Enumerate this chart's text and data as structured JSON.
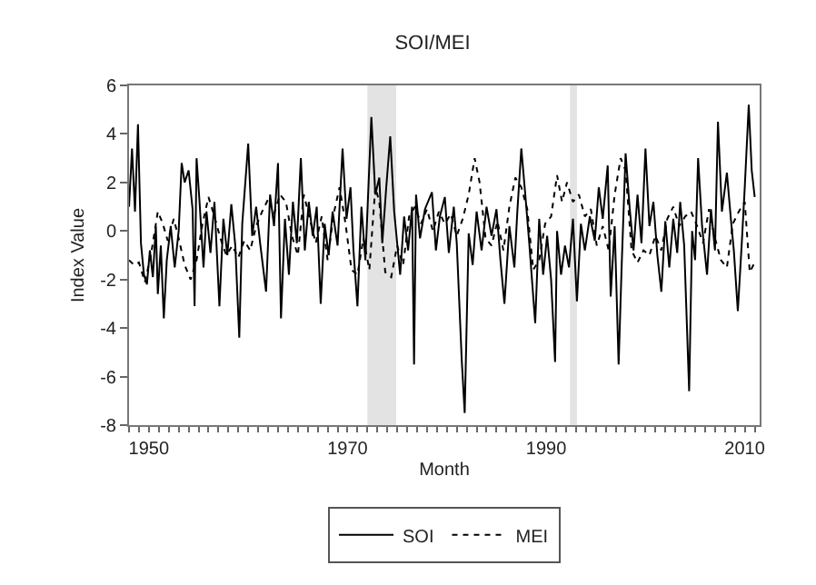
{
  "chart_data": {
    "type": "line",
    "title": "SOI/MEI",
    "xlabel": "Month",
    "ylabel": "Index Value",
    "xlim": [
      1948,
      2011.5
    ],
    "ylim": [
      -8,
      6
    ],
    "yticks": [
      -8,
      -6,
      -4,
      -2,
      0,
      2,
      4,
      6
    ],
    "xticks": [
      {
        "value": 1948,
        "label": null
      },
      {
        "value": 1949,
        "label": null
      },
      1950,
      {
        "value": 1951,
        "label": null
      },
      {
        "value": 1952,
        "label": null
      },
      {
        "value": 1953,
        "label": null
      },
      {
        "value": 1954,
        "label": null
      },
      {
        "value": 1955,
        "label": null
      },
      {
        "value": 1956,
        "label": null
      },
      {
        "value": 1957,
        "label": null
      },
      {
        "value": 1958,
        "label": null
      },
      {
        "value": 1959,
        "label": null
      },
      {
        "value": 1960,
        "label": null
      },
      {
        "value": 1961,
        "label": null
      },
      {
        "value": 1962,
        "label": null
      },
      {
        "value": 1963,
        "label": null
      },
      {
        "value": 1964,
        "label": null
      },
      {
        "value": 1965,
        "label": null
      },
      {
        "value": 1966,
        "label": null
      },
      {
        "value": 1967,
        "label": null
      },
      {
        "value": 1968,
        "label": null
      },
      {
        "value": 1969,
        "label": null
      },
      1970,
      {
        "value": 1971,
        "label": null
      },
      {
        "value": 1972,
        "label": null
      },
      {
        "value": 1973,
        "label": null
      },
      {
        "value": 1974,
        "label": null
      },
      {
        "value": 1975,
        "label": null
      },
      {
        "value": 1976,
        "label": null
      },
      {
        "value": 1977,
        "label": null
      },
      {
        "value": 1978,
        "label": null
      },
      {
        "value": 1979,
        "label": null
      },
      {
        "value": 1980,
        "label": null
      },
      {
        "value": 1981,
        "label": null
      },
      {
        "value": 1982,
        "label": null
      },
      {
        "value": 1983,
        "label": null
      },
      {
        "value": 1984,
        "label": null
      },
      {
        "value": 1985,
        "label": null
      },
      {
        "value": 1986,
        "label": null
      },
      {
        "value": 1987,
        "label": null
      },
      {
        "value": 1988,
        "label": null
      },
      {
        "value": 1989,
        "label": null
      },
      1990,
      {
        "value": 1991,
        "label": null
      },
      {
        "value": 1992,
        "label": null
      },
      {
        "value": 1993,
        "label": null
      },
      {
        "value": 1994,
        "label": null
      },
      {
        "value": 1995,
        "label": null
      },
      {
        "value": 1996,
        "label": null
      },
      {
        "value": 1997,
        "label": null
      },
      {
        "value": 1998,
        "label": null
      },
      {
        "value": 1999,
        "label": null
      },
      {
        "value": 2000,
        "label": null
      },
      {
        "value": 2001,
        "label": null
      },
      {
        "value": 2002,
        "label": null
      },
      {
        "value": 2003,
        "label": null
      },
      {
        "value": 2004,
        "label": null
      },
      {
        "value": 2005,
        "label": null
      },
      {
        "value": 2006,
        "label": null
      },
      {
        "value": 2007,
        "label": null
      },
      {
        "value": 2008,
        "label": null
      },
      {
        "value": 2009,
        "label": null
      },
      2010,
      {
        "value": 2011,
        "label": null
      }
    ],
    "grid": false,
    "legend": "bottom",
    "bands": [
      {
        "axis": "x",
        "from": 1972,
        "to": 1974.9,
        "color": "#e3e3e3"
      },
      {
        "axis": "x",
        "from": 1992.4,
        "to": 1993.1,
        "color": "#e3e3e3"
      }
    ],
    "series": [
      {
        "name": "SOI",
        "color": "#000000",
        "line_style": "solid",
        "x": [
          1948.0,
          1948.3,
          1948.6,
          1948.9,
          1949.2,
          1949.5,
          1949.8,
          1950.1,
          1950.4,
          1950.7,
          1950.9,
          1951.2,
          1951.5,
          1951.8,
          1952.2,
          1952.6,
          1953.0,
          1953.3,
          1953.6,
          1954.0,
          1954.4,
          1954.6,
          1954.8,
          1955.1,
          1955.5,
          1955.8,
          1956.2,
          1956.6,
          1957.1,
          1957.5,
          1957.9,
          1958.3,
          1958.7,
          1959.1,
          1959.4,
          1960.0,
          1960.4,
          1960.8,
          1961.2,
          1961.8,
          1962.2,
          1962.6,
          1963.0,
          1963.3,
          1963.7,
          1964.1,
          1964.5,
          1964.9,
          1965.3,
          1965.7,
          1966.1,
          1966.5,
          1966.9,
          1967.3,
          1967.7,
          1968.1,
          1968.5,
          1969.0,
          1969.5,
          1969.9,
          1970.3,
          1970.6,
          1971.0,
          1971.4,
          1971.8,
          1972.4,
          1972.8,
          1973.2,
          1973.5,
          1973.9,
          1974.3,
          1974.7,
          1975.3,
          1975.7,
          1976.1,
          1976.5,
          1976.7,
          1976.9,
          1977.3,
          1977.8,
          1978.5,
          1978.9,
          1979.3,
          1979.8,
          1980.2,
          1980.7,
          1981.0,
          1981.5,
          1981.8,
          1982.2,
          1982.6,
          1983.0,
          1983.5,
          1984.0,
          1984.5,
          1985.0,
          1985.4,
          1985.8,
          1986.3,
          1986.8,
          1987.1,
          1987.5,
          1987.9,
          1988.3,
          1988.9,
          1989.3,
          1989.7,
          1990.1,
          1990.5,
          1990.9,
          1991.1,
          1991.5,
          1991.9,
          1992.3,
          1992.7,
          1993.1,
          1993.5,
          1993.9,
          1994.4,
          1994.9,
          1995.3,
          1995.7,
          1996.2,
          1996.5,
          1996.9,
          1997.3,
          1997.6,
          1998.0,
          1998.4,
          1998.8,
          1999.2,
          1999.6,
          2000.0,
          2000.4,
          2000.8,
          2001.2,
          2001.6,
          2002.0,
          2002.4,
          2002.8,
          2003.2,
          2003.5,
          2003.9,
          2004.4,
          2004.7,
          2005.0,
          2005.3,
          2005.7,
          2006.2,
          2006.6,
          2007.0,
          2007.3,
          2007.7,
          2008.2,
          2008.6,
          2008.9,
          2009.3,
          2009.7,
          2010.0,
          2010.4,
          2010.7,
          2011.0
        ],
        "values": [
          1.0,
          3.4,
          0.8,
          4.4,
          -0.5,
          -1.8,
          -2.2,
          -0.8,
          -1.9,
          0.2,
          -2.6,
          -0.6,
          -3.6,
          -1.2,
          0.2,
          -1.5,
          0.0,
          2.8,
          2.0,
          2.5,
          0.9,
          -3.1,
          3.0,
          1.2,
          -1.5,
          0.8,
          -0.9,
          1.2,
          -3.1,
          0.5,
          -1.0,
          1.1,
          -0.6,
          -4.4,
          0.3,
          3.6,
          -0.2,
          1.0,
          -0.5,
          -2.5,
          1.5,
          0.2,
          2.8,
          -3.6,
          0.5,
          -1.8,
          1.2,
          -0.5,
          3.0,
          -0.8,
          1.2,
          -0.2,
          1.0,
          -3.0,
          0.3,
          -1.0,
          0.8,
          -0.6,
          3.4,
          0.5,
          1.8,
          -0.8,
          -3.1,
          1.0,
          -1.2,
          4.7,
          1.5,
          2.2,
          -0.5,
          1.8,
          3.9,
          0.8,
          -1.8,
          0.6,
          -0.8,
          1.0,
          -5.5,
          1.5,
          -0.3,
          0.9,
          1.6,
          -0.8,
          0.6,
          1.4,
          -0.9,
          1.0,
          -0.5,
          -5.3,
          -7.5,
          -0.1,
          -1.4,
          0.8,
          -0.8,
          1.0,
          -0.2,
          0.9,
          -1.2,
          -3.0,
          0.2,
          -1.5,
          0.8,
          3.4,
          1.5,
          -0.5,
          -3.8,
          0.5,
          -1.8,
          -0.2,
          -2.0,
          -5.4,
          0.0,
          -1.8,
          -0.6,
          -1.5,
          0.5,
          -2.9,
          0.3,
          -0.8,
          0.6,
          -0.4,
          1.8,
          0.5,
          2.7,
          -2.7,
          0.2,
          -5.5,
          -1.5,
          3.2,
          1.0,
          -0.8,
          1.5,
          -0.5,
          3.4,
          0.2,
          1.2,
          -1.0,
          -2.5,
          0.4,
          -1.5,
          0.5,
          -0.9,
          1.2,
          -0.6,
          -6.6,
          0.0,
          -1.2,
          3.0,
          0.2,
          -1.8,
          0.9,
          -0.8,
          4.5,
          0.8,
          2.4,
          0.5,
          -0.8,
          -3.3,
          -0.5,
          1.8,
          5.2,
          2.5,
          1.4
        ]
      },
      {
        "name": "MEI",
        "color": "#000000",
        "line_style": "dotted",
        "x": [
          1948.0,
          1948.5,
          1949.0,
          1949.6,
          1950.2,
          1950.9,
          1951.4,
          1951.9,
          1952.5,
          1953.0,
          1953.6,
          1954.2,
          1954.8,
          1955.4,
          1956.0,
          1956.6,
          1957.2,
          1957.8,
          1958.4,
          1959.0,
          1959.6,
          1960.2,
          1960.8,
          1961.4,
          1962.0,
          1962.6,
          1963.2,
          1963.8,
          1964.4,
          1965.0,
          1965.6,
          1966.2,
          1966.8,
          1967.4,
          1968.0,
          1968.6,
          1969.2,
          1969.8,
          1970.4,
          1971.0,
          1971.6,
          1972.2,
          1972.8,
          1973.2,
          1973.8,
          1974.4,
          1975.0,
          1975.6,
          1976.2,
          1976.8,
          1977.4,
          1978.0,
          1978.6,
          1979.2,
          1979.8,
          1980.4,
          1981.0,
          1981.6,
          1982.2,
          1982.8,
          1983.3,
          1983.9,
          1984.5,
          1985.1,
          1985.7,
          1986.3,
          1986.9,
          1987.5,
          1988.1,
          1988.7,
          1989.3,
          1989.9,
          1990.5,
          1991.1,
          1991.6,
          1992.1,
          1992.7,
          1993.3,
          1993.9,
          1994.5,
          1995.1,
          1995.7,
          1996.3,
          1996.9,
          1997.5,
          1998.0,
          1998.6,
          1999.2,
          1999.8,
          2000.4,
          2001.0,
          2001.6,
          2002.2,
          2002.8,
          2003.4,
          2004.0,
          2004.6,
          2005.2,
          2005.8,
          2006.4,
          2007.0,
          2007.6,
          2008.2,
          2008.8,
          2009.4,
          2010.0,
          2010.5,
          2011.0
        ],
        "values": [
          -1.2,
          -1.4,
          -1.3,
          -2.1,
          -1.0,
          0.8,
          0.3,
          -0.4,
          0.5,
          -0.3,
          -1.4,
          -2.0,
          -1.2,
          0.3,
          1.4,
          0.6,
          -0.3,
          -1.0,
          -0.6,
          -1.1,
          -0.4,
          -0.8,
          0.2,
          0.8,
          1.3,
          0.7,
          1.5,
          1.2,
          -0.2,
          -1.0,
          1.5,
          0.5,
          -0.5,
          0.6,
          -1.2,
          0.7,
          1.8,
          0.3,
          -1.6,
          -1.8,
          -0.3,
          -1.6,
          1.8,
          1.2,
          -1.7,
          -1.9,
          -0.6,
          -1.4,
          0.6,
          1.0,
          0.3,
          0.9,
          0.0,
          0.8,
          0.3,
          0.7,
          -0.2,
          0.5,
          1.5,
          3.0,
          2.0,
          -0.3,
          -0.6,
          0.4,
          -0.8,
          1.0,
          2.2,
          1.8,
          0.9,
          -1.6,
          -1.2,
          0.3,
          0.6,
          2.3,
          1.2,
          2.0,
          1.2,
          1.5,
          0.6,
          0.9,
          -0.6,
          0.2,
          -0.8,
          1.5,
          3.0,
          2.5,
          -0.8,
          -1.3,
          -0.8,
          -1.0,
          -0.2,
          -0.8,
          0.5,
          1.0,
          0.2,
          0.6,
          0.8,
          0.2,
          -0.5,
          0.9,
          -0.3,
          -1.2,
          -1.5,
          0.3,
          0.8,
          1.2,
          -1.7,
          -1.3
        ]
      }
    ]
  }
}
